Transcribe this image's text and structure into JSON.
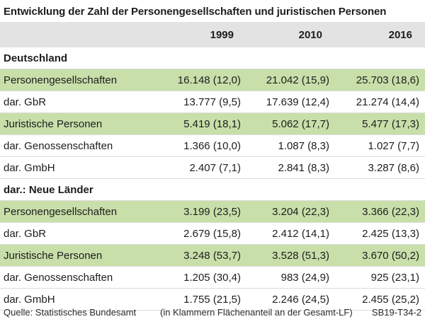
{
  "title": "Entwicklung der Zahl der Personengesellschaften und juristischen Personen",
  "columns": [
    "1999",
    "2010",
    "2016"
  ],
  "sections": [
    {
      "heading": "Deutschland",
      "rows": [
        {
          "label": "Personengesellschaften",
          "values": [
            "16.148 (12,0)",
            "21.042 (15,9)",
            "25.703 (18,6)"
          ],
          "highlight": true
        },
        {
          "label": "dar. GbR",
          "values": [
            "13.777 (9,5)",
            "17.639 (12,4)",
            "21.274 (14,4)"
          ],
          "highlight": false
        },
        {
          "label": "Juristische Personen",
          "values": [
            "5.419 (18,1)",
            "5.062 (17,7)",
            "5.477 (17,3)"
          ],
          "highlight": true
        },
        {
          "label": "dar. Genossenschaften",
          "values": [
            "1.366 (10,0)",
            "1.087 (8,3)",
            "1.027 (7,7)"
          ],
          "highlight": false
        },
        {
          "label": "dar. GmbH",
          "values": [
            "2.407 (7,1)",
            "2.841 (8,3)",
            "3.287 (8,6)"
          ],
          "highlight": false
        }
      ]
    },
    {
      "heading": "dar.: Neue Länder",
      "rows": [
        {
          "label": "Personengesellschaften",
          "values": [
            "3.199 (23,5)",
            "3.204 (22,3)",
            "3.366 (22,3)"
          ],
          "highlight": true
        },
        {
          "label": "dar. GbR",
          "values": [
            "2.679 (15,8)",
            "2.412 (14,1)",
            "2.425 (13,3)"
          ],
          "highlight": false
        },
        {
          "label": "Juristische Personen",
          "values": [
            "3.248 (53,7)",
            "3.528 (51,3)",
            "3.670 (50,2)"
          ],
          "highlight": true
        },
        {
          "label": "dar. Genossenschaften",
          "values": [
            "1.205 (30,4)",
            "983 (24,9)",
            "925 (23,1)"
          ],
          "highlight": false
        },
        {
          "label": "dar. GmbH",
          "values": [
            "1.755 (21,5)",
            "2.246 (24,5)",
            "2.455 (25,2)"
          ],
          "highlight": false
        }
      ]
    }
  ],
  "footer": {
    "source": "Quelle: Statistisches Bundesamt",
    "note": "(in Klammern Flächenanteil an der Gesamt-LF)",
    "code": "SB19-T34-2"
  },
  "colors": {
    "highlight": "#c8dfaa",
    "header_bg": "#e3e3e3"
  }
}
